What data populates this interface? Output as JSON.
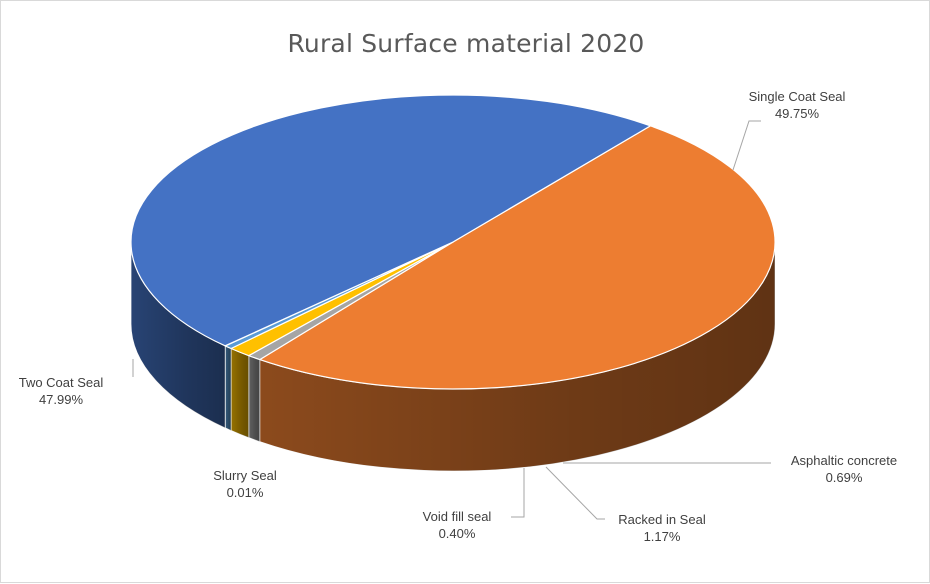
{
  "chart_data": {
    "type": "pie",
    "title": "Rural Surface material 2020",
    "three_d": true,
    "legend": "none",
    "slices": [
      {
        "label": "Single Coat Seal",
        "value": 49.75,
        "value_label": "49.75%",
        "color": "#ED7D31"
      },
      {
        "label": "Asphaltic concrete",
        "value": 0.69,
        "value_label": "0.69%",
        "color": "#A5A5A5"
      },
      {
        "label": "Racked in Seal",
        "value": 1.17,
        "value_label": "1.17%",
        "color": "#FFC000"
      },
      {
        "label": "Void fill seal",
        "value": 0.4,
        "value_label": "0.40%",
        "color": "#5B9BD5"
      },
      {
        "label": "Slurry Seal",
        "value": 0.01,
        "value_label": "0.01%",
        "color": "#70AD47"
      },
      {
        "label": "Two Coat Seal",
        "value": 47.99,
        "value_label": "47.99%",
        "color": "#4472C4"
      }
    ]
  }
}
